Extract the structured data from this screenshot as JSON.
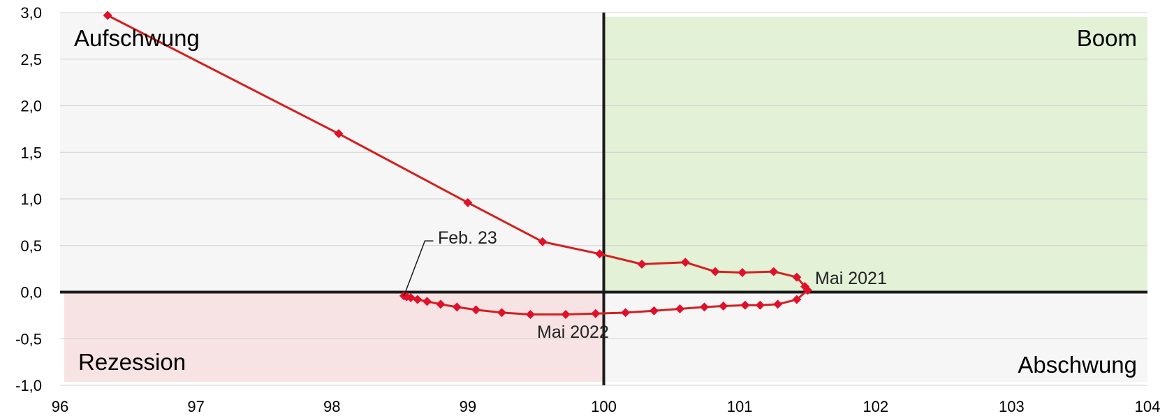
{
  "chart_data": {
    "type": "scatter",
    "xlim": [
      96,
      104
    ],
    "ylim": [
      -1.0,
      3.0
    ],
    "x_ticks": [
      "96",
      "97",
      "98",
      "99",
      "100",
      "101",
      "102",
      "103",
      "104"
    ],
    "y_ticks": [
      "3,0",
      "2,5",
      "2,0",
      "1,5",
      "1,0",
      "0,5",
      "0,0",
      "-0,5",
      "-1,0"
    ],
    "x_tick_values": [
      96,
      97,
      98,
      99,
      100,
      101,
      102,
      103,
      104
    ],
    "y_tick_values": [
      3.0,
      2.5,
      2.0,
      1.5,
      1.0,
      0.5,
      0.0,
      -0.5,
      -1.0
    ],
    "grid": true,
    "quadrants": {
      "top_left": "Aufschwung",
      "top_right": "Boom",
      "bottom_left": "Rezession",
      "bottom_right": "Abschwung"
    },
    "colors": {
      "line": "#d42020",
      "marker": "#e0102a",
      "boom_fill": "#e3f1d7",
      "recession_fill": "#f7e3e3",
      "neutral_fill": "#f6f6f6",
      "axis": "#1a1a1a"
    },
    "series": [
      {
        "points": [
          {
            "x": 96.35,
            "y": 2.97
          },
          {
            "x": 98.05,
            "y": 1.7
          },
          {
            "x": 99.0,
            "y": 0.96
          },
          {
            "x": 99.55,
            "y": 0.54
          },
          {
            "x": 99.97,
            "y": 0.41
          },
          {
            "x": 100.28,
            "y": 0.3
          },
          {
            "x": 100.6,
            "y": 0.32
          },
          {
            "x": 100.82,
            "y": 0.22
          },
          {
            "x": 101.02,
            "y": 0.21
          },
          {
            "x": 101.25,
            "y": 0.22
          },
          {
            "x": 101.42,
            "y": 0.16
          },
          {
            "x": 101.48,
            "y": 0.06
          },
          {
            "x": 101.5,
            "y": 0.02
          },
          {
            "x": 101.42,
            "y": -0.08
          },
          {
            "x": 101.28,
            "y": -0.13
          },
          {
            "x": 101.15,
            "y": -0.14
          },
          {
            "x": 101.04,
            "y": -0.14
          },
          {
            "x": 100.88,
            "y": -0.15
          },
          {
            "x": 100.74,
            "y": -0.16
          },
          {
            "x": 100.56,
            "y": -0.18
          },
          {
            "x": 100.37,
            "y": -0.2
          },
          {
            "x": 100.16,
            "y": -0.22
          },
          {
            "x": 99.94,
            "y": -0.23
          },
          {
            "x": 99.72,
            "y": -0.24
          },
          {
            "x": 99.46,
            "y": -0.24
          },
          {
            "x": 99.25,
            "y": -0.22
          },
          {
            "x": 99.06,
            "y": -0.19
          },
          {
            "x": 98.92,
            "y": -0.16
          },
          {
            "x": 98.8,
            "y": -0.13
          },
          {
            "x": 98.7,
            "y": -0.1
          },
          {
            "x": 98.63,
            "y": -0.08
          },
          {
            "x": 98.58,
            "y": -0.06
          },
          {
            "x": 98.55,
            "y": -0.05
          },
          {
            "x": 98.53,
            "y": -0.04
          }
        ]
      }
    ],
    "annotations": [
      {
        "text": "Feb. 23",
        "x": 98.53,
        "y": -0.04
      },
      {
        "text": "Mai 2021",
        "x": 101.5,
        "y": 0.02
      },
      {
        "text": "Mai 2022",
        "x": 99.72,
        "y": -0.24
      }
    ]
  }
}
